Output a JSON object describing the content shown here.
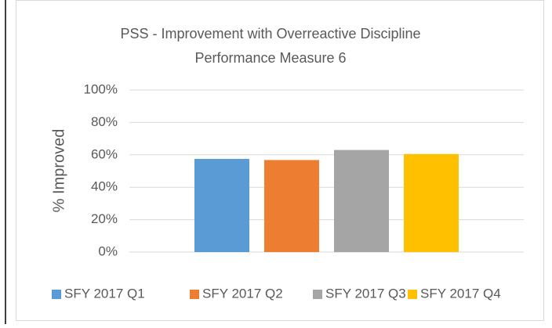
{
  "chart_data": {
    "type": "bar",
    "title": "PSS - Improvement with Overreactive Discipline",
    "subtitle": "Performance Measure 6",
    "y_label": "% Improved",
    "categories": [
      null
    ],
    "series": [
      {
        "name": "SFY 2017 Q1",
        "color": "#5b9bd5",
        "values": [
          57.5
        ]
      },
      {
        "name": "SFY 2017 Q2",
        "color": "#ed7d31",
        "values": [
          56.8
        ]
      },
      {
        "name": "SFY 2017 Q3",
        "color": "#a5a5a5",
        "values": [
          63
        ]
      },
      {
        "name": "SFY 2017 Q4",
        "color": "#ffc000",
        "values": [
          60.5
        ]
      }
    ],
    "ylim": [
      0,
      100
    ],
    "yticks": [
      {
        "value": 0,
        "label": "0%"
      },
      {
        "value": 20,
        "label": "20%"
      },
      {
        "value": 40,
        "label": "40%"
      },
      {
        "value": 60,
        "label": "60%"
      },
      {
        "value": 80,
        "label": "80%"
      },
      {
        "value": 100,
        "label": "100%"
      }
    ],
    "grid": true,
    "legend": "bottom"
  }
}
